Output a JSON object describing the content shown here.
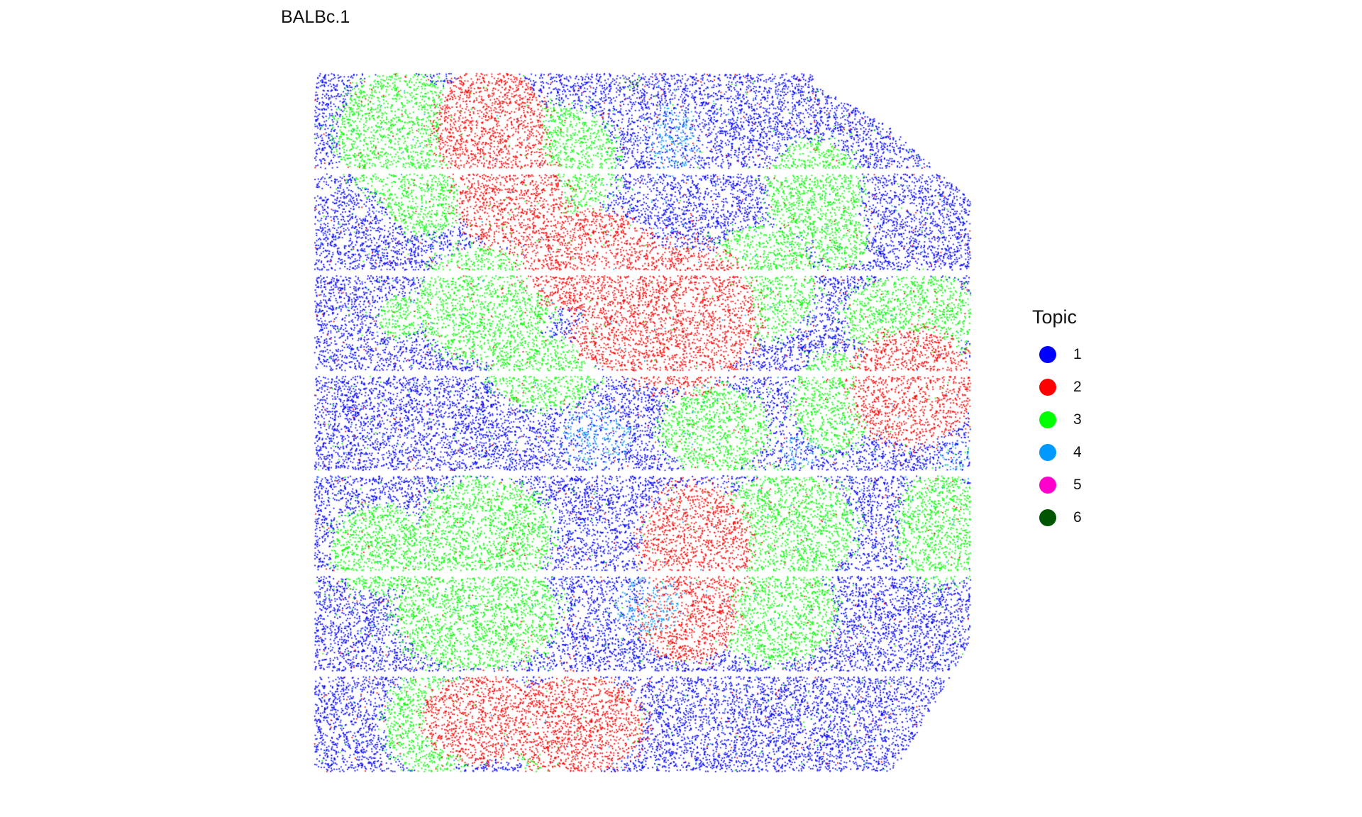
{
  "chart_data": {
    "type": "scatter",
    "title": "BALBc.1",
    "xlabel": "",
    "ylabel": "",
    "axes_visible": false,
    "grid": false,
    "legend": {
      "title": "Topic",
      "placement": "right",
      "entries": [
        {
          "label": "1",
          "color": "#0000ff"
        },
        {
          "label": "2",
          "color": "#ff0000"
        },
        {
          "label": "3",
          "color": "#00ff00"
        },
        {
          "label": "4",
          "color": "#0099ff"
        },
        {
          "label": "5",
          "color": "#ff00cc"
        },
        {
          "label": "6",
          "color": "#005500"
        }
      ]
    },
    "series": [
      {
        "name": "1",
        "color": "#0000ff",
        "role": "background"
      },
      {
        "name": "2",
        "color": "#ff0000",
        "regions": [
          {
            "cx": 0.27,
            "cy": 0.08,
            "rx": 0.08,
            "ry": 0.09
          },
          {
            "cx": 0.3,
            "cy": 0.18,
            "rx": 0.08,
            "ry": 0.07
          },
          {
            "cx": 0.42,
            "cy": 0.27,
            "rx": 0.1,
            "ry": 0.07
          },
          {
            "cx": 0.55,
            "cy": 0.35,
            "rx": 0.12,
            "ry": 0.1
          },
          {
            "cx": 0.48,
            "cy": 0.38,
            "rx": 0.08,
            "ry": 0.05
          },
          {
            "cx": 0.91,
            "cy": 0.45,
            "rx": 0.09,
            "ry": 0.08
          },
          {
            "cx": 0.58,
            "cy": 0.68,
            "rx": 0.08,
            "ry": 0.09
          },
          {
            "cx": 0.57,
            "cy": 0.78,
            "rx": 0.07,
            "ry": 0.06
          },
          {
            "cx": 0.26,
            "cy": 0.92,
            "rx": 0.09,
            "ry": 0.06
          },
          {
            "cx": 0.4,
            "cy": 0.93,
            "rx": 0.1,
            "ry": 0.07
          }
        ]
      },
      {
        "name": "3",
        "color": "#00ff00",
        "regions": [
          {
            "cx": 0.13,
            "cy": 0.09,
            "rx": 0.09,
            "ry": 0.09
          },
          {
            "cx": 0.17,
            "cy": 0.18,
            "rx": 0.06,
            "ry": 0.05
          },
          {
            "cx": 0.37,
            "cy": 0.13,
            "rx": 0.09,
            "ry": 0.08
          },
          {
            "cx": 0.76,
            "cy": 0.17,
            "rx": 0.07,
            "ry": 0.07
          },
          {
            "cx": 0.8,
            "cy": 0.24,
            "rx": 0.04,
            "ry": 0.04
          },
          {
            "cx": 0.26,
            "cy": 0.33,
            "rx": 0.1,
            "ry": 0.08
          },
          {
            "cx": 0.35,
            "cy": 0.43,
            "rx": 0.08,
            "ry": 0.05
          },
          {
            "cx": 0.68,
            "cy": 0.3,
            "rx": 0.08,
            "ry": 0.08
          },
          {
            "cx": 0.91,
            "cy": 0.35,
            "rx": 0.1,
            "ry": 0.06
          },
          {
            "cx": 0.79,
            "cy": 0.47,
            "rx": 0.06,
            "ry": 0.07
          },
          {
            "cx": 0.61,
            "cy": 0.51,
            "rx": 0.08,
            "ry": 0.06
          },
          {
            "cx": 0.1,
            "cy": 0.68,
            "rx": 0.07,
            "ry": 0.06
          },
          {
            "cx": 0.26,
            "cy": 0.66,
            "rx": 0.1,
            "ry": 0.08
          },
          {
            "cx": 0.25,
            "cy": 0.77,
            "rx": 0.12,
            "ry": 0.08
          },
          {
            "cx": 0.72,
            "cy": 0.65,
            "rx": 0.1,
            "ry": 0.08
          },
          {
            "cx": 0.7,
            "cy": 0.77,
            "rx": 0.09,
            "ry": 0.07
          },
          {
            "cx": 0.95,
            "cy": 0.65,
            "rx": 0.06,
            "ry": 0.08
          },
          {
            "cx": 0.18,
            "cy": 0.93,
            "rx": 0.07,
            "ry": 0.07
          },
          {
            "cx": 0.36,
            "cy": 0.97,
            "rx": 0.05,
            "ry": 0.03
          },
          {
            "cx": 0.13,
            "cy": 0.35,
            "rx": 0.03,
            "ry": 0.03
          }
        ]
      },
      {
        "name": "4",
        "color": "#0099ff",
        "regions": [
          {
            "cx": 0.55,
            "cy": 0.1,
            "rx": 0.04,
            "ry": 0.05
          },
          {
            "cx": 0.43,
            "cy": 0.52,
            "rx": 0.05,
            "ry": 0.04
          },
          {
            "cx": 0.98,
            "cy": 0.55,
            "rx": 0.03,
            "ry": 0.02
          },
          {
            "cx": 0.51,
            "cy": 0.76,
            "rx": 0.05,
            "ry": 0.04
          },
          {
            "cx": 0.74,
            "cy": 0.54,
            "rx": 0.03,
            "ry": 0.02
          }
        ]
      },
      {
        "name": "5",
        "color": "#ff00cc",
        "regions": []
      },
      {
        "name": "6",
        "color": "#005500",
        "regions": [
          {
            "cx": 0.48,
            "cy": 0.02,
            "rx": 0.02,
            "ry": 0.01
          }
        ]
      }
    ]
  }
}
